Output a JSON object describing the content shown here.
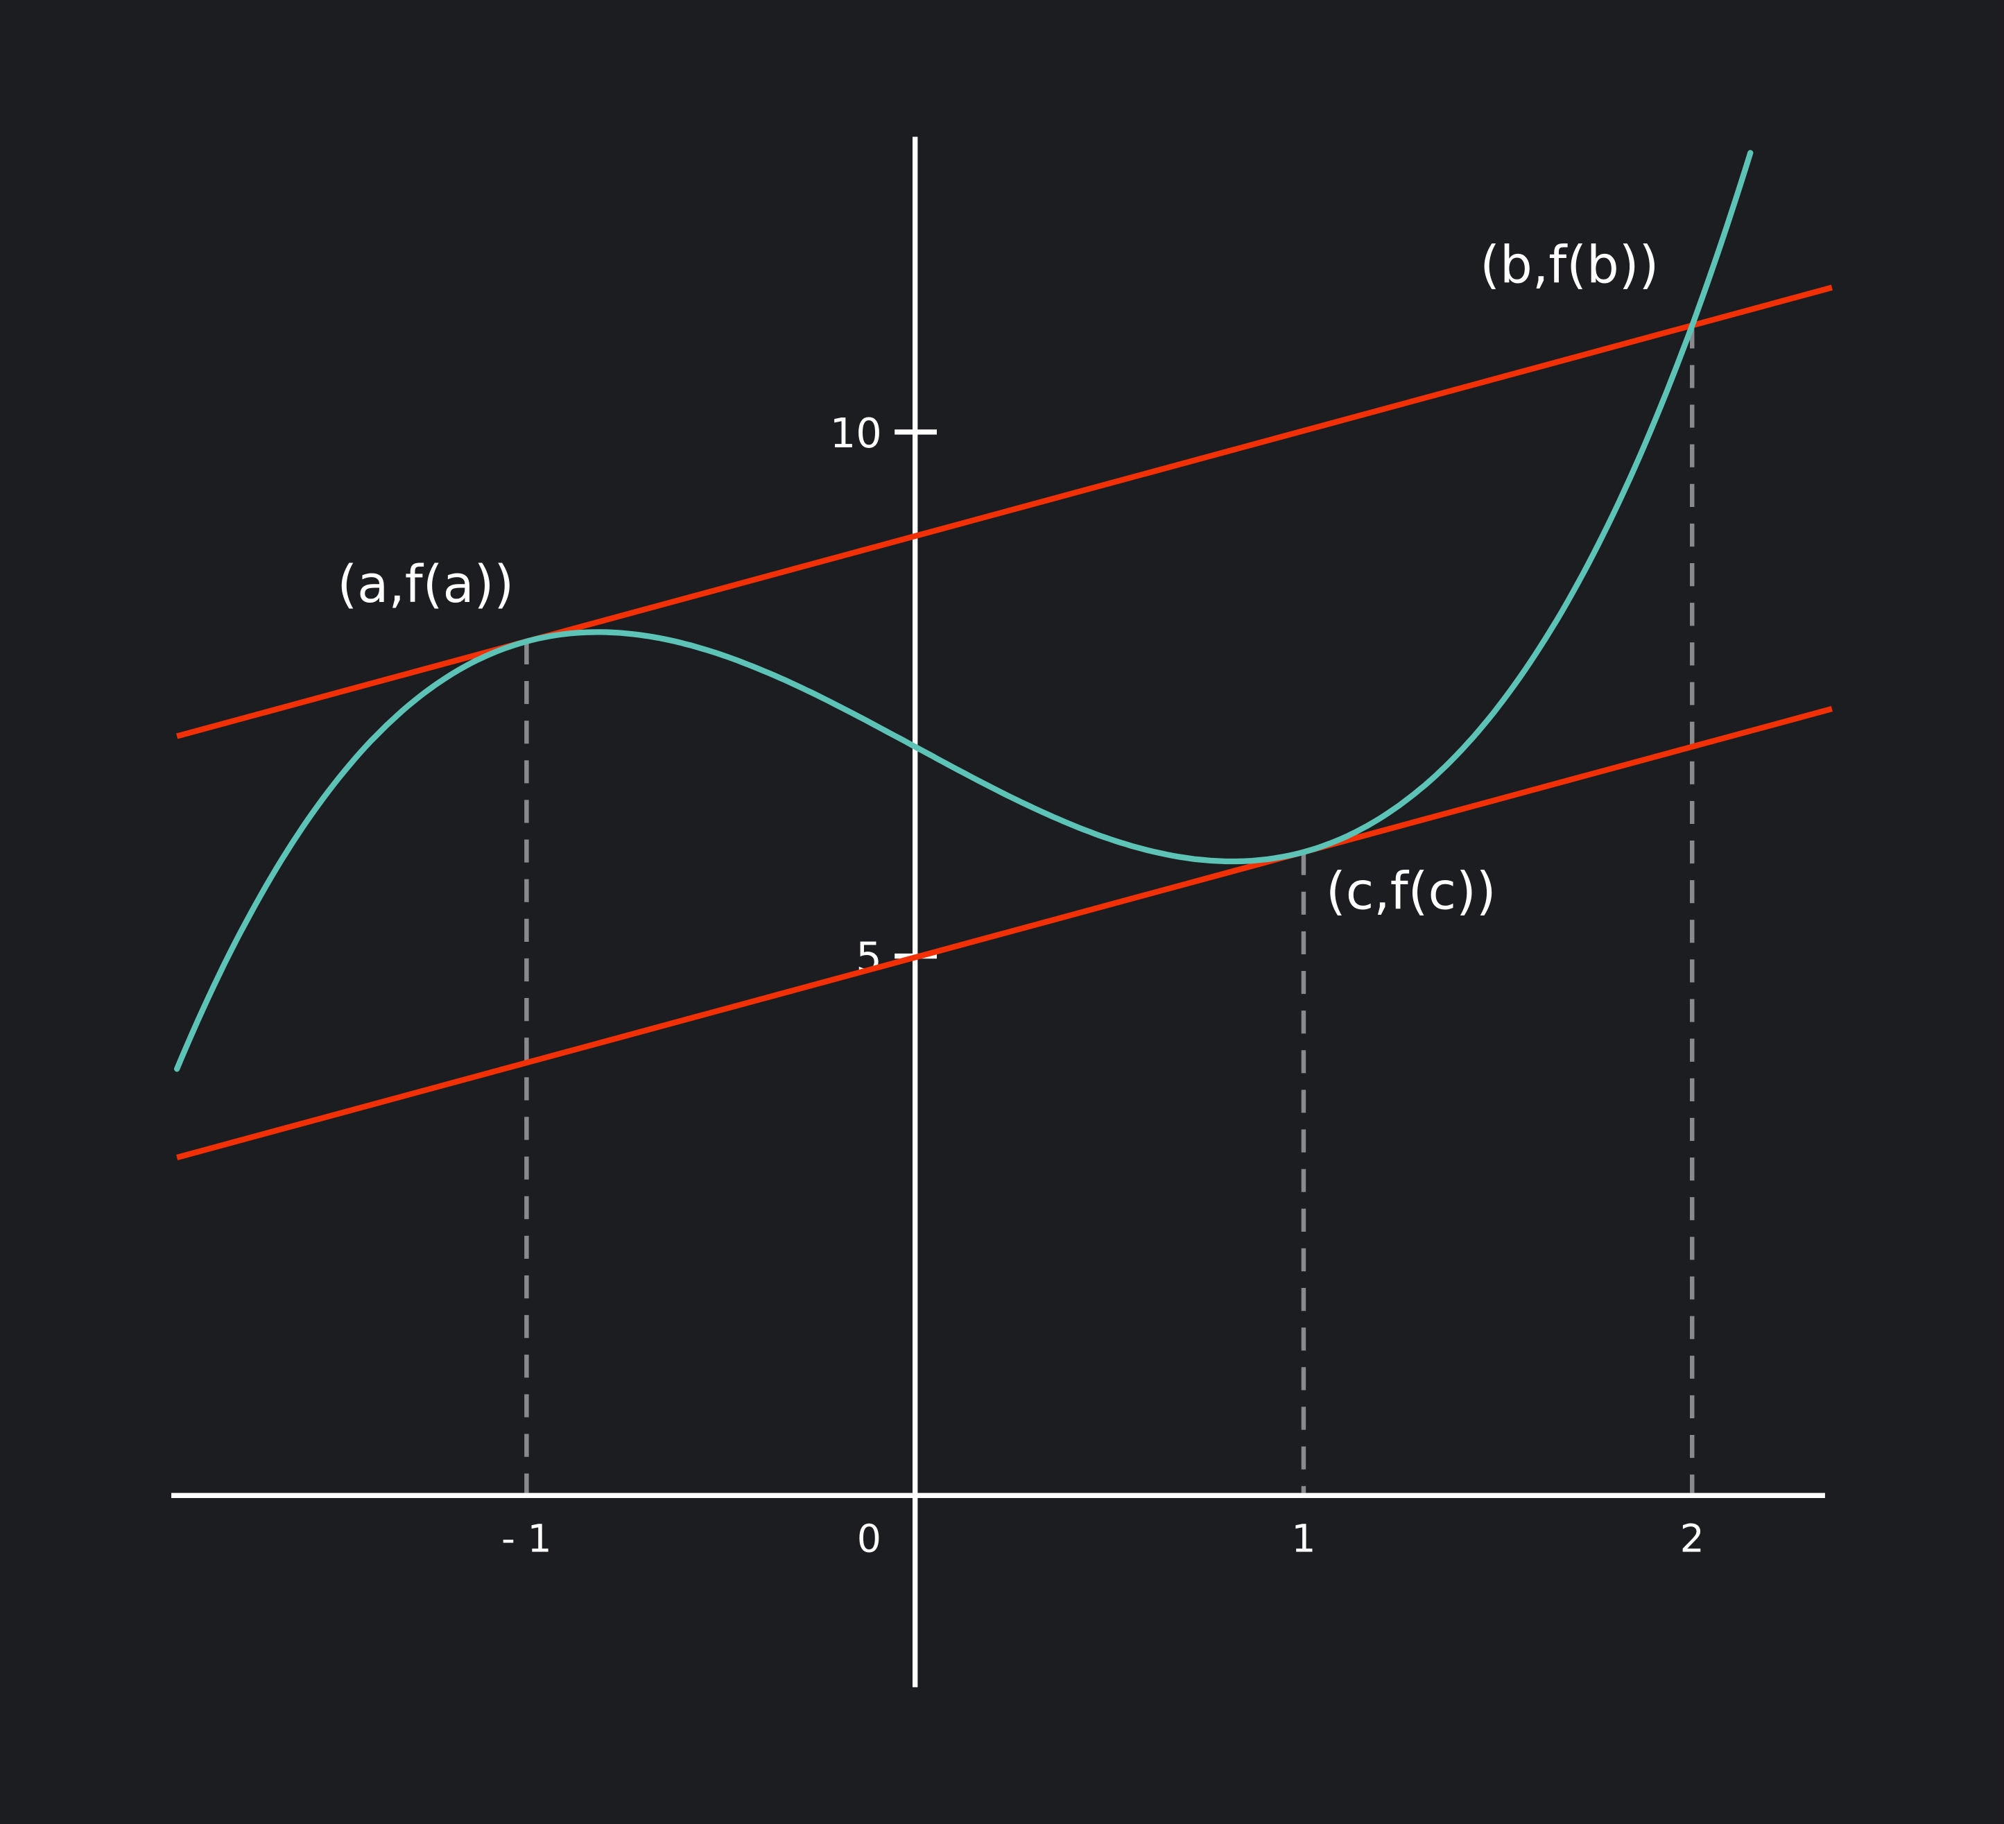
{
  "chart_data": {
    "type": "line",
    "title": "",
    "xlabel": "",
    "ylabel": "",
    "xlim": [
      -1.91,
      2.34
    ],
    "ylim": [
      -1.94,
      12.8
    ],
    "grid": false,
    "x_ticks": [
      {
        "value": -1,
        "label": "- 1"
      },
      {
        "value": 0,
        "label": "0"
      },
      {
        "value": 1,
        "label": "1"
      },
      {
        "value": 2,
        "label": "2"
      }
    ],
    "y_ticks": [
      {
        "value": 5,
        "label": "5"
      },
      {
        "value": 10,
        "label": "10"
      }
    ],
    "curve": {
      "description_formula": "x^3 - 2x + 7",
      "coefficients": [
        1,
        0,
        -2,
        7
      ],
      "x_range": [
        -1.9,
        2.15
      ],
      "color": "#5cc3b6"
    },
    "lines": [
      {
        "slope": 1,
        "intercept": 9,
        "x_range": [
          -1.9,
          2.36
        ],
        "color": "#f23005"
      },
      {
        "slope": 1,
        "intercept": 5,
        "x_range": [
          -1.9,
          2.36
        ],
        "color": "#f23005"
      }
    ],
    "dashed_verticals": [
      {
        "x": -1,
        "y": 8
      },
      {
        "x": 1,
        "y": 6
      },
      {
        "x": 2,
        "y": 11
      }
    ],
    "dashed_color": "#8a8a8c",
    "annotations": [
      {
        "text": "(a,f(a))",
        "x": -1,
        "y": 8
      },
      {
        "text": "(b,f(b))",
        "x": 2,
        "y": 11
      },
      {
        "text": "(c,f(c))",
        "x": 1,
        "y": 6
      }
    ],
    "background": "#1c1d21"
  }
}
